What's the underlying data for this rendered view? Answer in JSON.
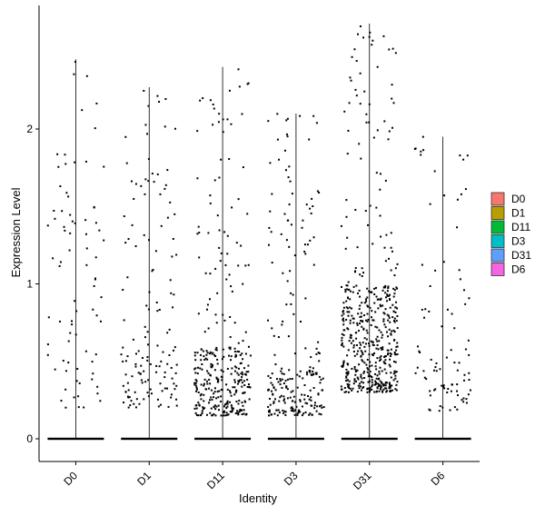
{
  "chart_data": {
    "type": "violin-jitter",
    "xlabel": "Identity",
    "ylabel": "Expression Level",
    "categories": [
      "D0",
      "D1",
      "D11",
      "D3",
      "D31",
      "D6"
    ],
    "ylim": [
      -0.15,
      2.8
    ],
    "yticks": [
      0,
      1,
      2
    ],
    "grid": false,
    "legend": {
      "position": "right",
      "entries": [
        {
          "label": "D0",
          "color": "#F8766D"
        },
        {
          "label": "D1",
          "color": "#B79F00"
        },
        {
          "label": "D11",
          "color": "#00BA38"
        },
        {
          "label": "D3",
          "color": "#00BFC4"
        },
        {
          "label": "D31",
          "color": "#619CFF"
        },
        {
          "label": "D6",
          "color": "#F564E3"
        }
      ]
    },
    "groups": [
      {
        "name": "D0",
        "max": 2.45,
        "n_positive": 80,
        "dense_low": 0.2,
        "dense_high": 2.45,
        "core_low": 0.2,
        "core_high": 2.45,
        "core_n": 0
      },
      {
        "name": "D1",
        "max": 2.27,
        "n_positive": 140,
        "dense_low": 0.2,
        "dense_high": 2.27,
        "core_low": 0.25,
        "core_high": 0.6,
        "core_n": 40
      },
      {
        "name": "D11",
        "max": 2.4,
        "n_positive": 330,
        "dense_low": 0.15,
        "dense_high": 2.4,
        "core_low": 0.15,
        "core_high": 0.6,
        "core_n": 220
      },
      {
        "name": "D3",
        "max": 2.1,
        "n_positive": 230,
        "dense_low": 0.15,
        "dense_high": 2.1,
        "core_low": 0.15,
        "core_high": 0.45,
        "core_n": 120
      },
      {
        "name": "D31",
        "max": 2.68,
        "n_positive": 520,
        "dense_low": 0.3,
        "dense_high": 2.68,
        "core_low": 0.3,
        "core_high": 1.0,
        "core_n": 400
      },
      {
        "name": "D6",
        "max": 1.95,
        "n_positive": 90,
        "dense_low": 0.18,
        "dense_high": 1.95,
        "core_low": 0.2,
        "core_high": 0.6,
        "core_n": 35
      }
    ]
  }
}
